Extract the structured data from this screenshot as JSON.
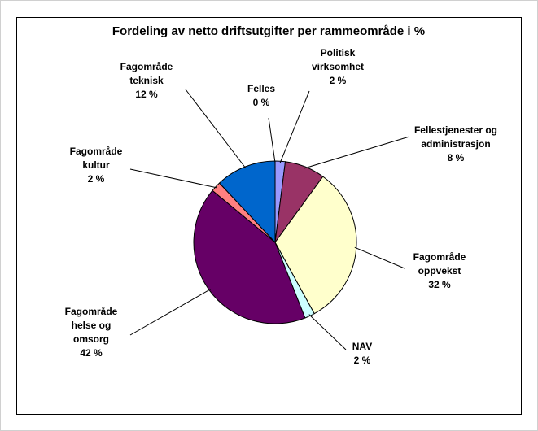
{
  "chart_data": {
    "type": "pie",
    "title": "Fordeling av netto driftsutgifter per rammeområde i %",
    "categories": [
      "Felles",
      "Politisk virksomhet",
      "Fellestjenester og administrasjon",
      "Fagområde oppvekst",
      "NAV",
      "Fagområde helse og omsorg",
      "Fagområde kultur",
      "Fagområde teknisk"
    ],
    "values": [
      0,
      2,
      8,
      32,
      2,
      42,
      2,
      12
    ],
    "value_labels": [
      "0 %",
      "2 %",
      "8 %",
      "32 %",
      "2 %",
      "42 %",
      "2 %",
      "12 %"
    ],
    "colors": [
      "#ccccff",
      "#9999ff",
      "#993366",
      "#ffffcc",
      "#ccffff",
      "#660066",
      "#ff8080",
      "#0066cc"
    ]
  }
}
